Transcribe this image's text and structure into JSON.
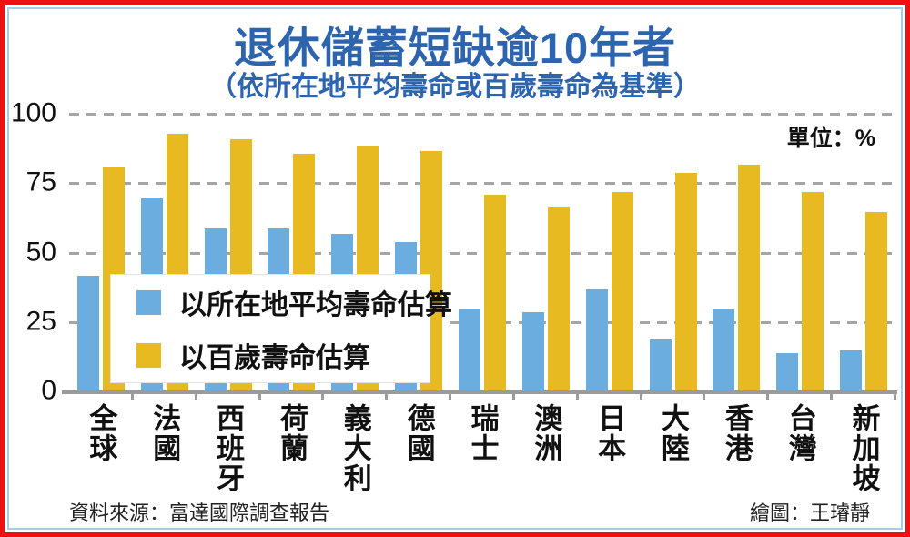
{
  "title": "退休儲蓄短缺逾10年者",
  "subtitle": "（依所在地平均壽命或百歲壽命為基準）",
  "unit_label": "單位：%",
  "source": "資料來源：富達國際調查報告",
  "credit": "繪圖：王璿靜",
  "colors": {
    "title_blue": "#2d64ae",
    "frame_red": "#ee1111",
    "frame_light_blue": "#a9cde2",
    "series_blue": "#6badde",
    "series_yellow": "#e7ba21",
    "gridline_gray": "#a5a5a5",
    "axis_gray": "#9b9b9b"
  },
  "chart_data": {
    "type": "bar",
    "categories": [
      "全球",
      "法國",
      "西班牙",
      "荷蘭",
      "義大利",
      "德國",
      "瑞士",
      "澳洲",
      "日本",
      "大陸",
      "香港",
      "台灣",
      "新加坡"
    ],
    "series": [
      {
        "name": "以所在地平均壽命估算",
        "color": "#6badde",
        "values": [
          42,
          70,
          59,
          59,
          57,
          54,
          30,
          29,
          37,
          19,
          30,
          14,
          15
        ]
      },
      {
        "name": "以百歲壽命估算",
        "color": "#e7ba21",
        "values": [
          81,
          93,
          91,
          86,
          89,
          87,
          71,
          67,
          72,
          79,
          82,
          72,
          65
        ]
      }
    ],
    "title": "退休儲蓄短缺逾10年者（依所在地平均壽命或百歲壽命為基準）",
    "xlabel": "",
    "ylabel": "單位：%",
    "ylim": [
      0,
      100
    ],
    "yticks": [
      0,
      25,
      50,
      75,
      100
    ],
    "grid": "horizontal-dashed",
    "legend_position": "inside-lower-left"
  }
}
